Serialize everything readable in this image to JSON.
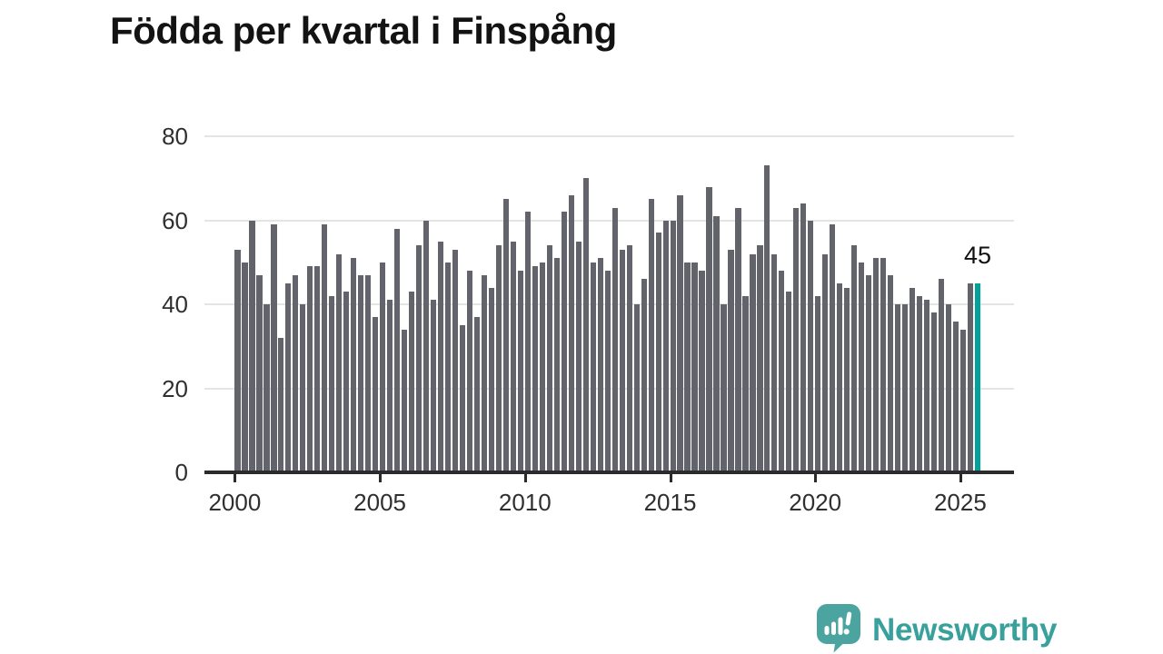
{
  "page": {
    "title": "Födda per kvartal i Finspång"
  },
  "chart_data": {
    "type": "bar",
    "title": "Födda per kvartal i Finspång",
    "x_unit": "quarter",
    "first_period": "2000 Q1",
    "last_period": "2025 Q3",
    "x_tick_labels": [
      "2000",
      "2005",
      "2010",
      "2015",
      "2020",
      "2025"
    ],
    "y_tick_labels": [
      "0",
      "20",
      "40",
      "60",
      "80"
    ],
    "ylim": [
      0,
      80
    ],
    "grid": "horizontal",
    "legend": "none",
    "series": [
      {
        "name": "Födda per kvartal",
        "values": [
          53,
          50,
          60,
          47,
          40,
          59,
          32,
          45,
          47,
          40,
          49,
          49,
          59,
          42,
          52,
          43,
          51,
          47,
          47,
          37,
          50,
          41,
          58,
          34,
          43,
          54,
          60,
          41,
          55,
          50,
          53,
          35,
          48,
          37,
          47,
          44,
          54,
          65,
          55,
          48,
          62,
          49,
          50,
          54,
          51,
          62,
          66,
          55,
          70,
          50,
          51,
          48,
          63,
          53,
          54,
          40,
          46,
          65,
          57,
          60,
          60,
          66,
          50,
          50,
          48,
          68,
          61,
          40,
          53,
          63,
          42,
          52,
          54,
          73,
          52,
          48,
          43,
          63,
          64,
          60,
          42,
          52,
          59,
          45,
          44,
          54,
          50,
          47,
          51,
          51,
          47,
          40,
          40,
          44,
          42,
          41,
          38,
          46,
          40,
          36,
          34,
          45,
          45
        ]
      }
    ],
    "highlight_last_bar": true,
    "annotation": {
      "text": "45",
      "value": 45
    },
    "colors": {
      "bar": "#63636b",
      "highlight": "#00a29a",
      "grid": "#e4e4e4",
      "axis": "#2b2b2b",
      "tick_text": "#2f2f2f",
      "title_text": "#131313"
    }
  },
  "logo": {
    "text": "Newsworthy",
    "color": "#38a19b",
    "icon": "speech-bubble-bar-chart"
  }
}
